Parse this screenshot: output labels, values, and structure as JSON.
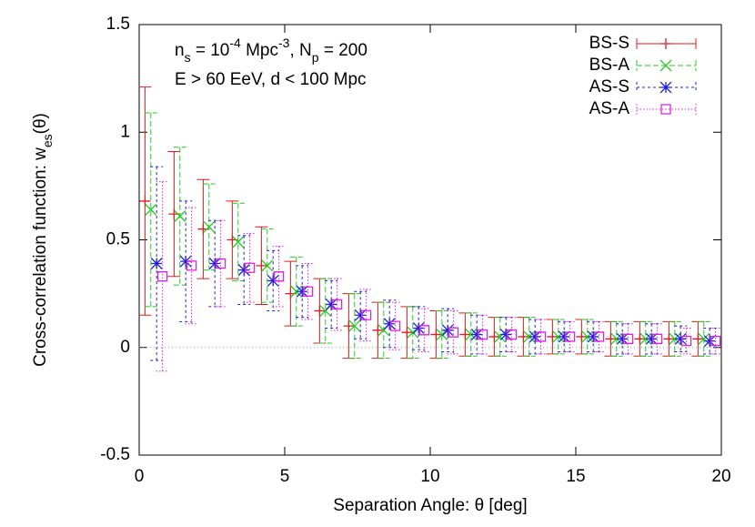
{
  "chart_data": {
    "type": "errorbar",
    "annotations": [
      [
        {
          "text": "n"
        },
        {
          "text": "s",
          "shift": "sub"
        },
        {
          "text": " = 10"
        },
        {
          "text": "-4",
          "shift": "sup"
        },
        {
          "text": " Mpc"
        },
        {
          "text": "-3",
          "shift": "sup"
        },
        {
          "text": ", N"
        },
        {
          "text": "p",
          "shift": "sub"
        },
        {
          "text": " = 200"
        }
      ],
      [
        {
          "text": "E > 60 EeV, d < 100 Mpc"
        }
      ]
    ],
    "x_label": "Separation Angle: θ [deg]",
    "y_label": [
      {
        "text": "Cross-correlation function: w"
      },
      {
        "text": "es",
        "shift": "sub"
      },
      {
        "text": "(θ)"
      }
    ],
    "xlim": [
      0,
      20
    ],
    "xticks": [
      0,
      5,
      10,
      15,
      20
    ],
    "ylim": [
      -0.5,
      1.5
    ],
    "yticks": [
      -0.5,
      0,
      0.5,
      1,
      1.5
    ],
    "zero_line": true,
    "legend": "top-right",
    "series": [
      {
        "name": "BS-S",
        "color": "#e41a1c",
        "marker": "plus",
        "line_style": "solid",
        "x": [
          0.2,
          1.2,
          2.2,
          3.2,
          4.2,
          5.2,
          6.2,
          7.2,
          8.2,
          9.2,
          10.2,
          11.2,
          12.2,
          13.2,
          14.2,
          15.2,
          16.2,
          17.2,
          18.2,
          19.2
        ],
        "values": [
          0.68,
          0.62,
          0.55,
          0.5,
          0.38,
          0.25,
          0.17,
          0.1,
          0.08,
          0.07,
          0.06,
          0.06,
          0.05,
          0.05,
          0.05,
          0.05,
          0.04,
          0.04,
          0.04,
          0.04
        ],
        "errors": [
          0.53,
          0.29,
          0.23,
          0.18,
          0.18,
          0.15,
          0.15,
          0.15,
          0.13,
          0.12,
          0.11,
          0.1,
          0.09,
          0.09,
          0.08,
          0.08,
          0.08,
          0.08,
          0.08,
          0.08
        ]
      },
      {
        "name": "BS-A",
        "color": "#22cc22",
        "marker": "cross",
        "line_style": "dashed",
        "x": [
          0.4,
          1.4,
          2.4,
          3.4,
          4.4,
          5.4,
          6.4,
          7.4,
          8.4,
          9.4,
          10.4,
          11.4,
          12.4,
          13.4,
          14.4,
          15.4,
          16.4,
          17.4,
          18.4,
          19.4
        ],
        "values": [
          0.64,
          0.61,
          0.56,
          0.49,
          0.38,
          0.26,
          0.17,
          0.1,
          0.08,
          0.07,
          0.06,
          0.06,
          0.05,
          0.05,
          0.05,
          0.05,
          0.04,
          0.04,
          0.04,
          0.04
        ],
        "errors": [
          0.45,
          0.32,
          0.2,
          0.18,
          0.17,
          0.16,
          0.15,
          0.15,
          0.13,
          0.12,
          0.11,
          0.1,
          0.09,
          0.09,
          0.08,
          0.08,
          0.08,
          0.08,
          0.08,
          0.08
        ]
      },
      {
        "name": "AS-S",
        "color": "#1f1fdd",
        "marker": "star",
        "line_style": "dash-short",
        "x": [
          0.6,
          1.6,
          2.6,
          3.6,
          4.6,
          5.6,
          6.6,
          7.6,
          8.6,
          9.6,
          10.6,
          11.6,
          12.6,
          13.6,
          14.6,
          15.6,
          16.6,
          17.6,
          18.6,
          19.6
        ],
        "values": [
          0.39,
          0.4,
          0.39,
          0.36,
          0.31,
          0.26,
          0.2,
          0.15,
          0.11,
          0.09,
          0.08,
          0.06,
          0.06,
          0.05,
          0.05,
          0.05,
          0.04,
          0.04,
          0.04,
          0.03
        ],
        "errors": [
          0.45,
          0.28,
          0.2,
          0.16,
          0.14,
          0.12,
          0.11,
          0.11,
          0.11,
          0.1,
          0.1,
          0.09,
          0.08,
          0.08,
          0.07,
          0.07,
          0.07,
          0.07,
          0.06,
          0.06
        ]
      },
      {
        "name": "AS-A",
        "color": "#dd22dd",
        "marker": "square",
        "line_style": "dotted",
        "x": [
          0.8,
          1.8,
          2.8,
          3.8,
          4.8,
          5.8,
          6.8,
          7.8,
          8.8,
          9.8,
          10.8,
          11.8,
          12.8,
          13.8,
          14.8,
          15.8,
          16.8,
          17.8,
          18.8,
          19.8
        ],
        "values": [
          0.33,
          0.38,
          0.39,
          0.37,
          0.33,
          0.26,
          0.2,
          0.15,
          0.1,
          0.08,
          0.07,
          0.06,
          0.06,
          0.05,
          0.05,
          0.05,
          0.04,
          0.04,
          0.03,
          0.03
        ],
        "errors": [
          0.44,
          0.27,
          0.2,
          0.16,
          0.14,
          0.13,
          0.12,
          0.12,
          0.11,
          0.1,
          0.1,
          0.09,
          0.08,
          0.08,
          0.07,
          0.07,
          0.07,
          0.07,
          0.06,
          0.06
        ]
      }
    ]
  }
}
